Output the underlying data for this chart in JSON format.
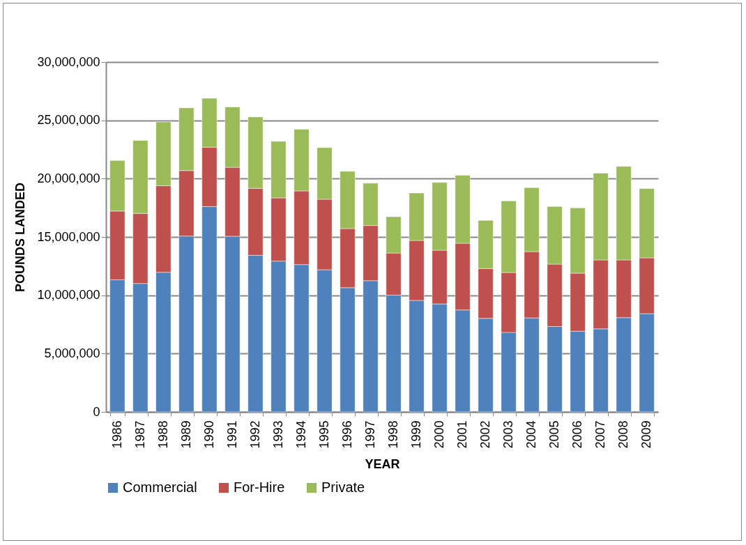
{
  "chart_data": {
    "type": "bar",
    "stacked": true,
    "xlabel": "YEAR",
    "ylabel": "POUNDS LANDED",
    "categories": [
      "1986",
      "1987",
      "1988",
      "1989",
      "1990",
      "1991",
      "1992",
      "1993",
      "1994",
      "1995",
      "1996",
      "1997",
      "1998",
      "1999",
      "2000",
      "2001",
      "2002",
      "2003",
      "2004",
      "2005",
      "2006",
      "2007",
      "2008",
      "2009"
    ],
    "series": [
      {
        "name": "Commercial",
        "color": "#4f81bd",
        "values": [
          11330000,
          11010000,
          11970000,
          15080000,
          17610000,
          15060000,
          13430000,
          12930000,
          12630000,
          12190000,
          10650000,
          11250000,
          10010000,
          9560000,
          9260000,
          8740000,
          8020000,
          6820000,
          8060000,
          7320000,
          6920000,
          7120000,
          8080000,
          8420000
        ]
      },
      {
        "name": "For-Hire",
        "color": "#c0504d",
        "values": [
          5890000,
          6010000,
          7420000,
          5610000,
          5090000,
          5910000,
          5740000,
          5420000,
          6320000,
          6040000,
          5070000,
          4730000,
          3610000,
          5140000,
          4600000,
          5720000,
          4270000,
          5130000,
          5680000,
          5350000,
          4970000,
          5910000,
          4950000,
          4790000
        ]
      },
      {
        "name": "Private",
        "color": "#9bbb59",
        "values": [
          4340000,
          6260000,
          5470000,
          5380000,
          4190000,
          5180000,
          6120000,
          4850000,
          5290000,
          4430000,
          4910000,
          3630000,
          3120000,
          4070000,
          5810000,
          5830000,
          4130000,
          6140000,
          5490000,
          4940000,
          5600000,
          7440000,
          8020000,
          5940000
        ]
      }
    ],
    "ylim": [
      0,
      30000000
    ],
    "yticks": [
      {
        "value": 0,
        "label": "0"
      },
      {
        "value": 5000000,
        "label": "5,000,000"
      },
      {
        "value": 10000000,
        "label": "10,000,000"
      },
      {
        "value": 15000000,
        "label": "15,000,000"
      },
      {
        "value": 20000000,
        "label": "20,000,000"
      },
      {
        "value": 25000000,
        "label": "25,000,000"
      },
      {
        "value": 30000000,
        "label": "30,000,000"
      }
    ],
    "grid": "y",
    "legend": "bottom"
  }
}
